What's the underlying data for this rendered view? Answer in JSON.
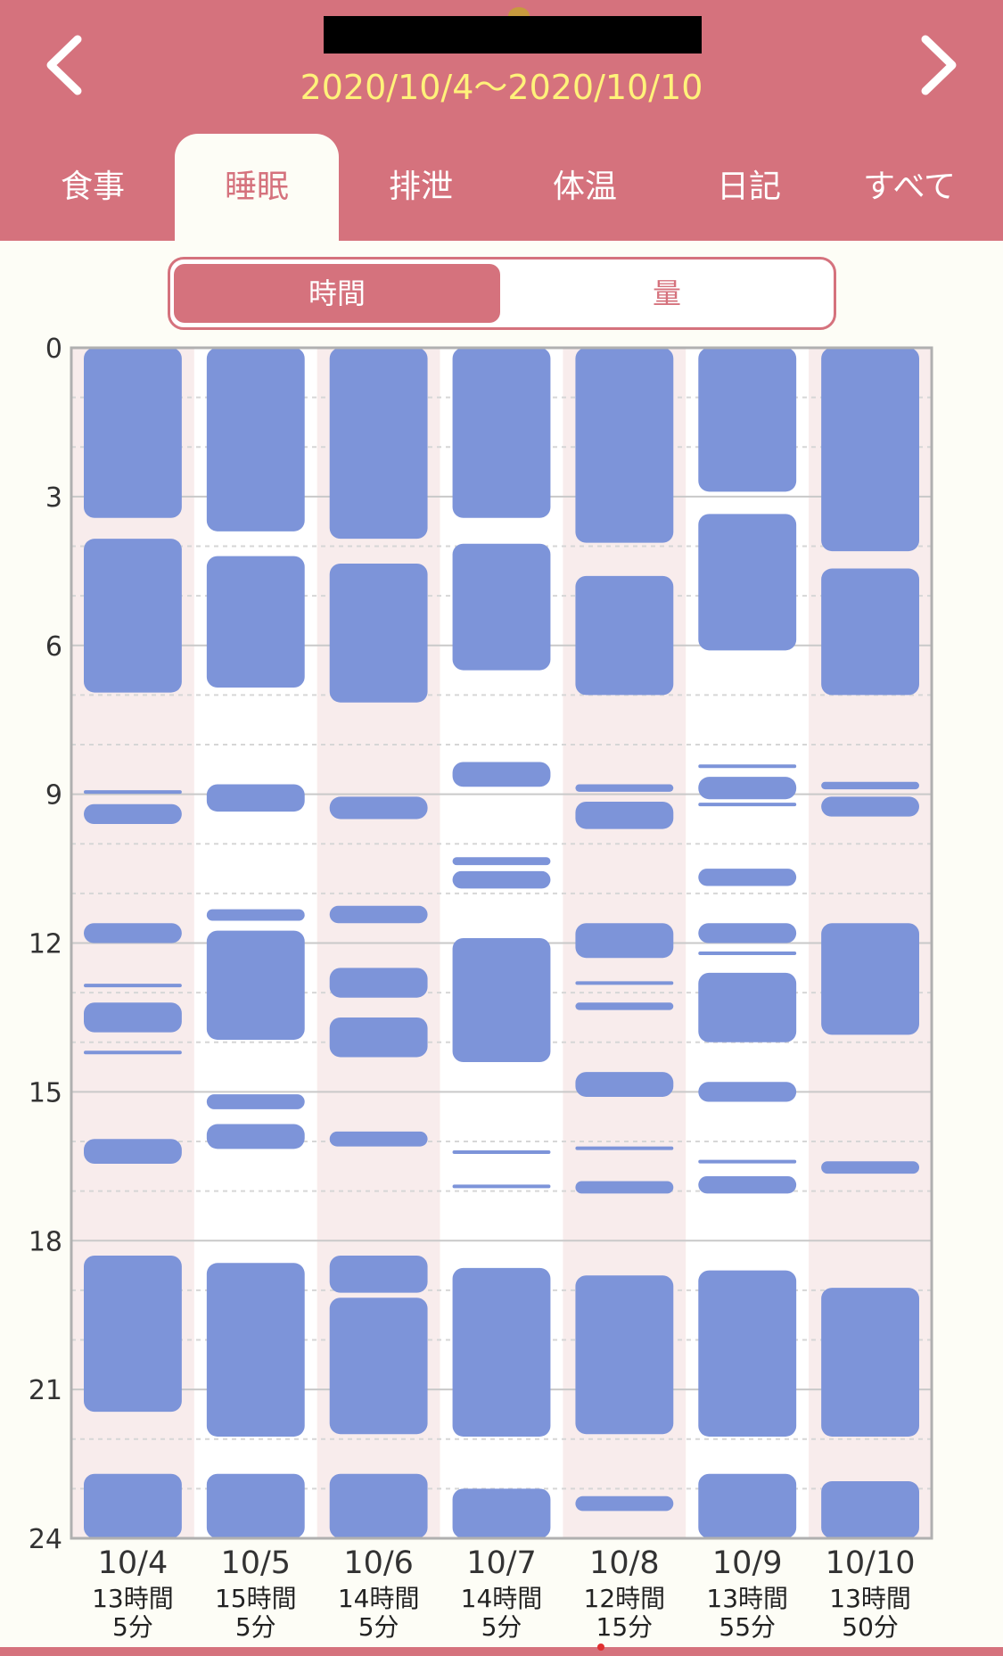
{
  "header": {
    "date_range": "2020/10/4〜2020/10/10"
  },
  "tabs": [
    {
      "label": "食事",
      "active": false
    },
    {
      "label": "睡眠",
      "active": true
    },
    {
      "label": "排泄",
      "active": false
    },
    {
      "label": "体温",
      "active": false
    },
    {
      "label": "日記",
      "active": false
    },
    {
      "label": "すべて",
      "active": false
    }
  ],
  "segment": {
    "time_label": "時間",
    "amount_label": "量",
    "selected": "時間"
  },
  "colors": {
    "accent": "#d5727d",
    "sleep_block": "#7d94d9",
    "date_highlight_red": "#d33a4a",
    "date_highlight_blue": "#4a7de0",
    "shaded_column": "#f8ecec",
    "date_range_text": "#fff27a"
  },
  "icons": {
    "prev": "chevron-left-icon",
    "next": "chevron-right-icon"
  },
  "chart_data": {
    "type": "timeline",
    "y_unit": "hour",
    "ylim": [
      0,
      24
    ],
    "y_ticks": [
      "0",
      "3",
      "6",
      "9",
      "12",
      "15",
      "18",
      "21",
      "24"
    ],
    "grid": true,
    "days": [
      {
        "date": "10/4",
        "total_hours": "13時間",
        "total_minutes": "5分",
        "date_color": "red",
        "blocks": [
          [
            0,
            3.43
          ],
          [
            3.85,
            6.95
          ],
          [
            8.92,
            8.98
          ],
          [
            9.2,
            9.6
          ],
          [
            11.6,
            12.0
          ],
          [
            12.82,
            12.88
          ],
          [
            13.2,
            13.8
          ],
          [
            14.17,
            14.23
          ],
          [
            15.95,
            16.45
          ],
          [
            18.3,
            21.45
          ],
          [
            22.7,
            24
          ]
        ]
      },
      {
        "date": "10/5",
        "total_hours": "15時間",
        "total_minutes": "5分",
        "date_color": "normal",
        "blocks": [
          [
            0,
            3.7
          ],
          [
            4.2,
            6.85
          ],
          [
            8.8,
            9.35
          ],
          [
            11.32,
            11.55
          ],
          [
            11.75,
            13.95
          ],
          [
            15.05,
            15.35
          ],
          [
            15.65,
            16.15
          ],
          [
            18.45,
            21.95
          ],
          [
            22.7,
            24
          ]
        ]
      },
      {
        "date": "10/6",
        "total_hours": "14時間",
        "total_minutes": "5分",
        "date_color": "normal",
        "blocks": [
          [
            0,
            3.85
          ],
          [
            4.35,
            7.15
          ],
          [
            9.05,
            9.5
          ],
          [
            11.25,
            11.6
          ],
          [
            12.5,
            13.1
          ],
          [
            13.5,
            14.3
          ],
          [
            15.8,
            16.1
          ],
          [
            18.3,
            19.05
          ],
          [
            19.15,
            21.9
          ],
          [
            22.7,
            24
          ]
        ]
      },
      {
        "date": "10/7",
        "total_hours": "14時間",
        "total_minutes": "5分",
        "date_color": "normal",
        "blocks": [
          [
            0,
            3.43
          ],
          [
            3.95,
            6.5
          ],
          [
            8.35,
            8.85
          ],
          [
            10.27,
            10.43
          ],
          [
            10.55,
            10.9
          ],
          [
            11.9,
            14.4
          ],
          [
            16.18,
            16.24
          ],
          [
            16.87,
            16.93
          ],
          [
            18.55,
            21.95
          ],
          [
            23.0,
            24
          ]
        ]
      },
      {
        "date": "10/8",
        "total_hours": "12時間",
        "total_minutes": "15分",
        "date_color": "normal",
        "blocks": [
          [
            0,
            3.93
          ],
          [
            4.6,
            7.0
          ],
          [
            8.8,
            8.95
          ],
          [
            9.15,
            9.7
          ],
          [
            11.6,
            12.3
          ],
          [
            12.77,
            12.83
          ],
          [
            13.2,
            13.35
          ],
          [
            14.6,
            15.1
          ],
          [
            16.1,
            16.16
          ],
          [
            16.8,
            17.05
          ],
          [
            18.7,
            21.9
          ],
          [
            23.15,
            23.45
          ]
        ]
      },
      {
        "date": "10/9",
        "total_hours": "13時間",
        "total_minutes": "55分",
        "date_color": "normal",
        "blocks": [
          [
            0,
            2.9
          ],
          [
            3.35,
            6.1
          ],
          [
            8.4,
            8.47
          ],
          [
            8.65,
            9.1
          ],
          [
            9.17,
            9.23
          ],
          [
            10.5,
            10.85
          ],
          [
            11.6,
            12.0
          ],
          [
            12.17,
            12.23
          ],
          [
            12.6,
            14.0
          ],
          [
            14.8,
            15.2
          ],
          [
            16.37,
            16.43
          ],
          [
            16.7,
            17.05
          ],
          [
            18.6,
            21.95
          ],
          [
            22.7,
            24
          ]
        ]
      },
      {
        "date": "10/10",
        "total_hours": "13時間",
        "total_minutes": "50分",
        "date_color": "blue",
        "blocks": [
          [
            0,
            4.1
          ],
          [
            4.45,
            7.0
          ],
          [
            8.75,
            8.9
          ],
          [
            9.05,
            9.45
          ],
          [
            11.6,
            13.85
          ],
          [
            16.4,
            16.65
          ],
          [
            18.95,
            21.95
          ],
          [
            22.85,
            24
          ]
        ]
      }
    ]
  }
}
